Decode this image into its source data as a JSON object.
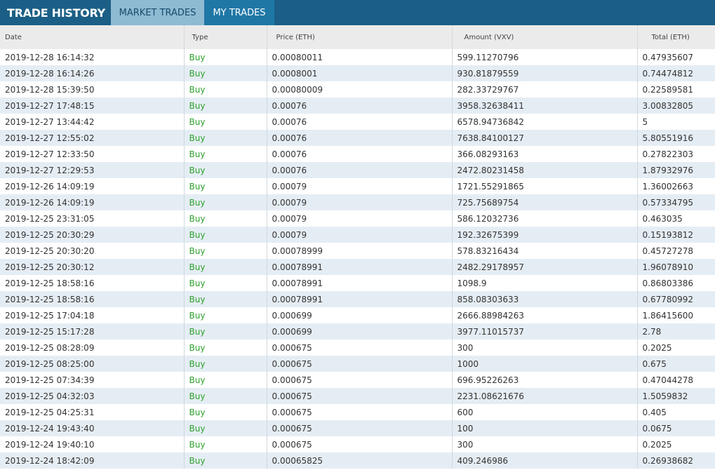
{
  "header": {
    "title": "TRADE HISTORY",
    "tabs": [
      "MARKET TRADES",
      "MY TRADES"
    ]
  },
  "table": {
    "columns": [
      "Date",
      "Type",
      "Price (ETH)",
      "Amount (VXV)",
      "Total (ETH)"
    ],
    "rows": [
      [
        "2019-12-28 16:14:32",
        "Buy",
        "0.00080011",
        "599.11270796",
        "0.47935607"
      ],
      [
        "2019-12-28 16:14:26",
        "Buy",
        "0.0008001",
        "930.81879559",
        "0.74474812"
      ],
      [
        "2019-12-28 15:39:50",
        "Buy",
        "0.00080009",
        "282.33729767",
        "0.22589581"
      ],
      [
        "2019-12-27 17:48:15",
        "Buy",
        "0.00076",
        "3958.32638411",
        "3.00832805"
      ],
      [
        "2019-12-27 13:44:42",
        "Buy",
        "0.00076",
        "6578.94736842",
        "5"
      ],
      [
        "2019-12-27 12:55:02",
        "Buy",
        "0.00076",
        "7638.84100127",
        "5.80551916"
      ],
      [
        "2019-12-27 12:33:50",
        "Buy",
        "0.00076",
        "366.08293163",
        "0.27822303"
      ],
      [
        "2019-12-27 12:29:53",
        "Buy",
        "0.00076",
        "2472.80231458",
        "1.87932976"
      ],
      [
        "2019-12-26 14:09:19",
        "Buy",
        "0.00079",
        "1721.55291865",
        "1.36002663"
      ],
      [
        "2019-12-26 14:09:19",
        "Buy",
        "0.00079",
        "725.75689754",
        "0.57334795"
      ],
      [
        "2019-12-25 23:31:05",
        "Buy",
        "0.00079",
        "586.12032736",
        "0.463035"
      ],
      [
        "2019-12-25 20:30:29",
        "Buy",
        "0.00079",
        "192.32675399",
        "0.15193812"
      ],
      [
        "2019-12-25 20:30:20",
        "Buy",
        "0.00078999",
        "578.83216434",
        "0.45727278"
      ],
      [
        "2019-12-25 20:30:12",
        "Buy",
        "0.00078991",
        "2482.29178957",
        "1.96078910"
      ],
      [
        "2019-12-25 18:58:16",
        "Buy",
        "0.00078991",
        "1098.9",
        "0.86803386"
      ],
      [
        "2019-12-25 18:58:16",
        "Buy",
        "0.00078991",
        "858.08303633",
        "0.67780992"
      ],
      [
        "2019-12-25 17:04:18",
        "Buy",
        "0.000699",
        "2666.88984263",
        "1.86415600"
      ],
      [
        "2019-12-25 15:17:28",
        "Buy",
        "0.000699",
        "3977.11015737",
        "2.78"
      ],
      [
        "2019-12-25 08:28:09",
        "Buy",
        "0.000675",
        "300",
        "0.2025"
      ],
      [
        "2019-12-25 08:25:00",
        "Buy",
        "0.000675",
        "1000",
        "0.675"
      ],
      [
        "2019-12-25 07:34:39",
        "Buy",
        "0.000675",
        "696.95226263",
        "0.47044278"
      ],
      [
        "2019-12-25 04:32:03",
        "Buy",
        "0.000675",
        "2231.08621676",
        "1.5059832"
      ],
      [
        "2019-12-25 04:25:31",
        "Buy",
        "0.000675",
        "600",
        "0.405"
      ],
      [
        "2019-12-24 19:43:40",
        "Buy",
        "0.000675",
        "100",
        "0.0675"
      ],
      [
        "2019-12-24 19:40:10",
        "Buy",
        "0.000675",
        "300",
        "0.2025"
      ],
      [
        "2019-12-24 18:42:09",
        "Buy",
        "0.00065825",
        "409.246986",
        "0.26938682"
      ]
    ]
  },
  "colors": {
    "header_bg": "#1b5f86",
    "tab_active_bg": "#8ebad2",
    "tab_inactive_bg": "#1f77a6",
    "buy_text": "#2ea02e",
    "row_stripe": "#e5edf4"
  }
}
